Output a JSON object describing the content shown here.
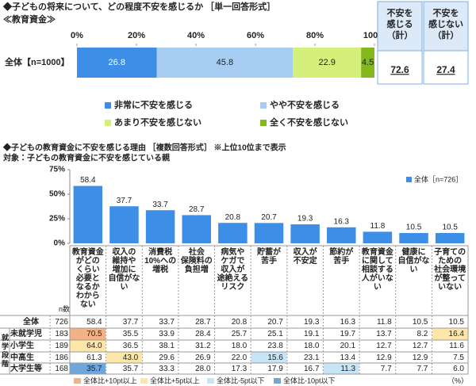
{
  "chart_data": [
    {
      "type": "bar",
      "orientation": "horizontal",
      "stacked": true,
      "title": "◆子どもの将来について、どの程度不安を感じるか ［単一回答形式］",
      "subtitle": "≪教育資金≫",
      "categories": [
        "全体【n=1000】"
      ],
      "series": [
        {
          "name": "非常に不安を感じる",
          "color": "#3d8ee6",
          "label_color": "#ffffff",
          "values": [
            26.8
          ]
        },
        {
          "name": "やや不安を感じる",
          "color": "#a8cdf3",
          "label_color": "#222222",
          "values": [
            45.8
          ]
        },
        {
          "name": "あまり不安を感じない",
          "color": "#d4f07a",
          "label_color": "#222222",
          "values": [
            22.9
          ]
        },
        {
          "name": "全く不安を感じない",
          "color": "#84b81e",
          "label_color": "#222222",
          "values": [
            4.5
          ]
        }
      ],
      "xlim": [
        0,
        100
      ],
      "xticks": [
        {
          "value": 0,
          "label": "0%"
        },
        {
          "value": 20,
          "label": "20%"
        },
        {
          "value": 40,
          "label": "40%"
        },
        {
          "value": 60,
          "label": "60%"
        },
        {
          "value": 80,
          "label": "80%"
        },
        {
          "value": 100,
          "label": "100%"
        }
      ],
      "legend": "bottom"
    },
    {
      "type": "bar",
      "title": "◆子どもの教育資金に不安を感じる理由 ［複数回答形式］ ※上位10位まで表示",
      "subtitle": "対象：子どもの教育資金に不安を感じている親",
      "categories": [
        "教育資金\nがどの\nくらい\n必要と\nなるか\nわから\nない",
        "収入の\n維持や\n増加に\n自信がな\nい",
        "消費税\n10%への\n増税",
        "社会\n保険料の\n負担増",
        "病気や\nケガで\n収入が\n途絶える\nリスク",
        "貯蓄が\n苦手",
        "収入が\n不安定",
        "節約が\n苦手",
        "教育資金\nに関して\n相談する\n人がいな\nい",
        "健康に\n自信がな\nい",
        "子育ての\nための\n社会環境\nが整って\nいない"
      ],
      "series": [
        {
          "name": "全体［n=726］",
          "color": "#3d8ee6",
          "values": [
            58.4,
            37.7,
            33.7,
            28.7,
            20.8,
            20.7,
            19.3,
            16.3,
            11.8,
            10.5,
            10.5
          ]
        }
      ],
      "ylim": [
        0,
        75
      ],
      "yticks": [
        {
          "value": 0,
          "label": "0%"
        },
        {
          "value": 25,
          "label": "25%"
        },
        {
          "value": 50,
          "label": "50%"
        },
        {
          "value": 75,
          "label": "75%"
        }
      ],
      "legend": "top-right"
    }
  ],
  "summary_boxes": [
    {
      "label": "不安を\n感じる\n（計）",
      "value": 72.6
    },
    {
      "label": "不安を\n感じない\n（計）",
      "value": 27.4
    }
  ],
  "table": {
    "n_header": "n数",
    "group_label": "就学段階",
    "unit": "（%）",
    "rows": [
      {
        "label": "全体",
        "n": 726,
        "values": [
          "58.4",
          "37.7",
          "33.7",
          "28.7",
          "20.8",
          "20.7",
          "19.3",
          "16.3",
          "11.8",
          "10.5",
          "10.5"
        ]
      },
      {
        "label": "未就学児",
        "n": 183,
        "values": [
          "70.5",
          "35.5",
          "33.9",
          "28.4",
          "25.7",
          "25.1",
          "19.1",
          "19.7",
          "13.7",
          "8.2",
          "16.4"
        ]
      },
      {
        "label": "小学生",
        "n": 189,
        "values": [
          "64.0",
          "36.5",
          "38.1",
          "31.2",
          "18.0",
          "23.8",
          "18.0",
          "20.1",
          "12.7",
          "12.7",
          "11.6"
        ]
      },
      {
        "label": "中高生",
        "n": 186,
        "values": [
          "61.3",
          "43.0",
          "29.6",
          "26.9",
          "22.0",
          "15.6",
          "23.1",
          "13.4",
          "12.9",
          "12.9",
          "7.5"
        ]
      },
      {
        "label": "大学生等",
        "n": 168,
        "values": [
          "35.7",
          "35.7",
          "33.3",
          "28.0",
          "17.3",
          "17.9",
          "16.7",
          "11.3",
          "7.7",
          "7.7",
          "6.0"
        ]
      }
    ],
    "highlight_legend": [
      {
        "label": "全体比+10pt以上",
        "color": "#f4b183",
        "threshold": 10
      },
      {
        "label": "全体比+5pt以上",
        "color": "#fde7a8",
        "threshold": 5
      },
      {
        "label": "全体比-5pt以下",
        "color": "#c8e4f7",
        "threshold": -5
      },
      {
        "label": "全体比-10pt以下",
        "color": "#6ea6dd",
        "threshold": -10
      }
    ]
  }
}
